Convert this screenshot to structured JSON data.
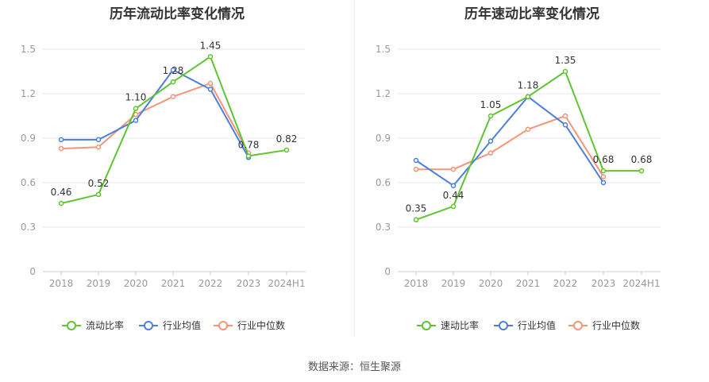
{
  "source_label": "数据来源：恒生聚源",
  "chart_data": [
    {
      "type": "line",
      "title": "历年流动比率变化情况",
      "categories": [
        "2018",
        "2019",
        "2020",
        "2021",
        "2022",
        "2023",
        "2024H1"
      ],
      "ylim": [
        0,
        1.5
      ],
      "yticks": [
        "0",
        "0.3",
        "0.6",
        "0.9",
        "1.2",
        "1.5"
      ],
      "grid": true,
      "legend_position": "bottom",
      "series": [
        {
          "name": "流动比率",
          "color": "#5ec530",
          "labels": true,
          "values": [
            0.46,
            0.52,
            1.1,
            1.28,
            1.45,
            0.78,
            0.82
          ],
          "value_labels": [
            "0.46",
            "0.52",
            "1.10",
            "1.28",
            "1.45",
            "0.78",
            "0.82"
          ]
        },
        {
          "name": "行业均值",
          "color": "#4a7fe0",
          "labels": false,
          "values": [
            0.89,
            0.89,
            1.02,
            1.36,
            1.23,
            0.77,
            null
          ]
        },
        {
          "name": "行业中位数",
          "color": "#f49576",
          "labels": false,
          "values": [
            0.83,
            0.84,
            1.06,
            1.18,
            1.27,
            0.8,
            null
          ]
        }
      ]
    },
    {
      "type": "line",
      "title": "历年速动比率变化情况",
      "categories": [
        "2018",
        "2019",
        "2020",
        "2021",
        "2022",
        "2023",
        "2024H1"
      ],
      "ylim": [
        0,
        1.5
      ],
      "yticks": [
        "0",
        "0.3",
        "0.6",
        "0.9",
        "1.2",
        "1.5"
      ],
      "grid": true,
      "legend_position": "bottom",
      "series": [
        {
          "name": "速动比率",
          "color": "#5ec530",
          "labels": true,
          "values": [
            0.35,
            0.44,
            1.05,
            1.18,
            1.35,
            0.68,
            0.68
          ],
          "value_labels": [
            "0.35",
            "0.44",
            "1.05",
            "1.18",
            "1.35",
            "0.68",
            "0.68"
          ]
        },
        {
          "name": "行业均值",
          "color": "#4a7fe0",
          "labels": false,
          "values": [
            0.75,
            0.58,
            0.88,
            1.18,
            0.99,
            0.6,
            null
          ]
        },
        {
          "name": "行业中位数",
          "color": "#f49576",
          "labels": false,
          "values": [
            0.69,
            0.69,
            0.8,
            0.96,
            1.05,
            0.64,
            null
          ]
        }
      ]
    }
  ]
}
